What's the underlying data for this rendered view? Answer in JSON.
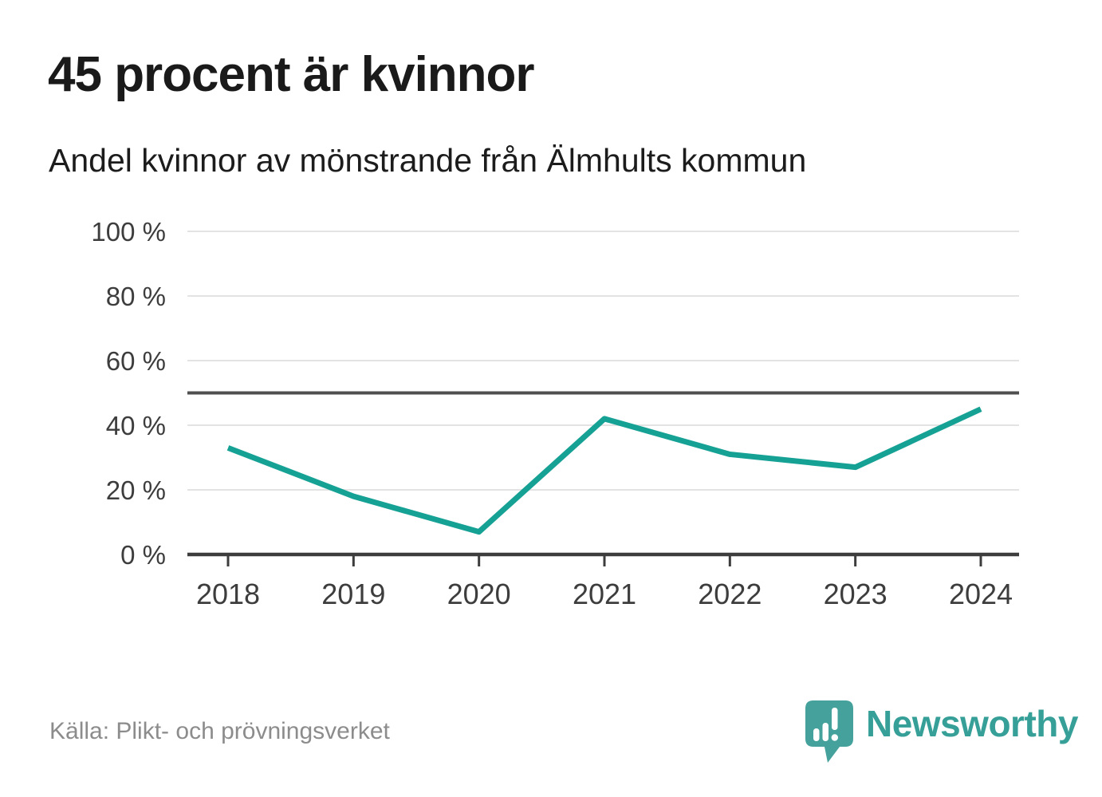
{
  "header": {
    "title": "45 procent är kvinnor",
    "subtitle": "Andel kvinnor av mönstrande från Älmhults kommun"
  },
  "chart_data": {
    "type": "line",
    "x": [
      "2018",
      "2019",
      "2020",
      "2021",
      "2022",
      "2023",
      "2024"
    ],
    "series": [
      {
        "name": "Andel kvinnor av mönstrande",
        "values": [
          33,
          18,
          7,
          42,
          31,
          27,
          45
        ]
      }
    ],
    "unit": "%",
    "ylim": [
      0,
      100
    ],
    "yticks": [
      0,
      20,
      40,
      60,
      80,
      100
    ],
    "ytick_labels": [
      "0 %",
      "20 %",
      "40 %",
      "60 %",
      "80 %",
      "100 %"
    ],
    "reference_line": 50,
    "grid": true,
    "legend": "none",
    "colors": {
      "line": "#16a195",
      "grid": "#e3e3e3",
      "reference": "#4f4f4f",
      "axis": "#3d3d3d",
      "tick_text": "#3d3d3d"
    }
  },
  "footer": {
    "source": "Källa: Plikt- och prövningsverket",
    "brand": "Newsworthy",
    "brand_color": "#359f98",
    "logo_icon": "bar-chart-speech-bubble-icon",
    "logo_color": "#44a19b"
  }
}
